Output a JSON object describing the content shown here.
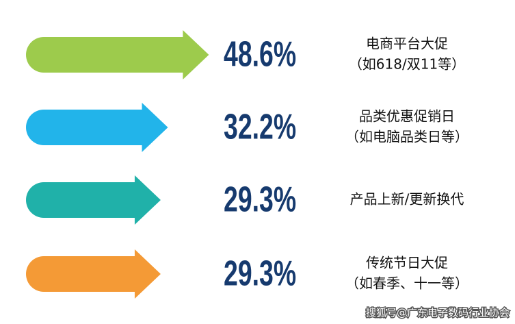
{
  "chart_data": {
    "type": "arrow-bar",
    "categories": [
      [
        "电商平台大促",
        "（如618/双11等）"
      ],
      [
        "品类优惠促销日",
        "（如电脑品类日等）"
      ],
      [
        "产品上新/更新换代"
      ],
      [
        "传统节日大促",
        "（如春季、十一等）"
      ]
    ],
    "values": [
      48.6,
      32.2,
      29.3,
      29.3
    ],
    "value_labels": [
      "48.6%",
      "32.2%",
      "29.3%",
      "29.3%"
    ],
    "colors": [
      "#9dcb4c",
      "#22b4ea",
      "#20b1a9",
      "#f49a36"
    ],
    "watermark": "搜狐号@广东电子数码行业协会"
  }
}
